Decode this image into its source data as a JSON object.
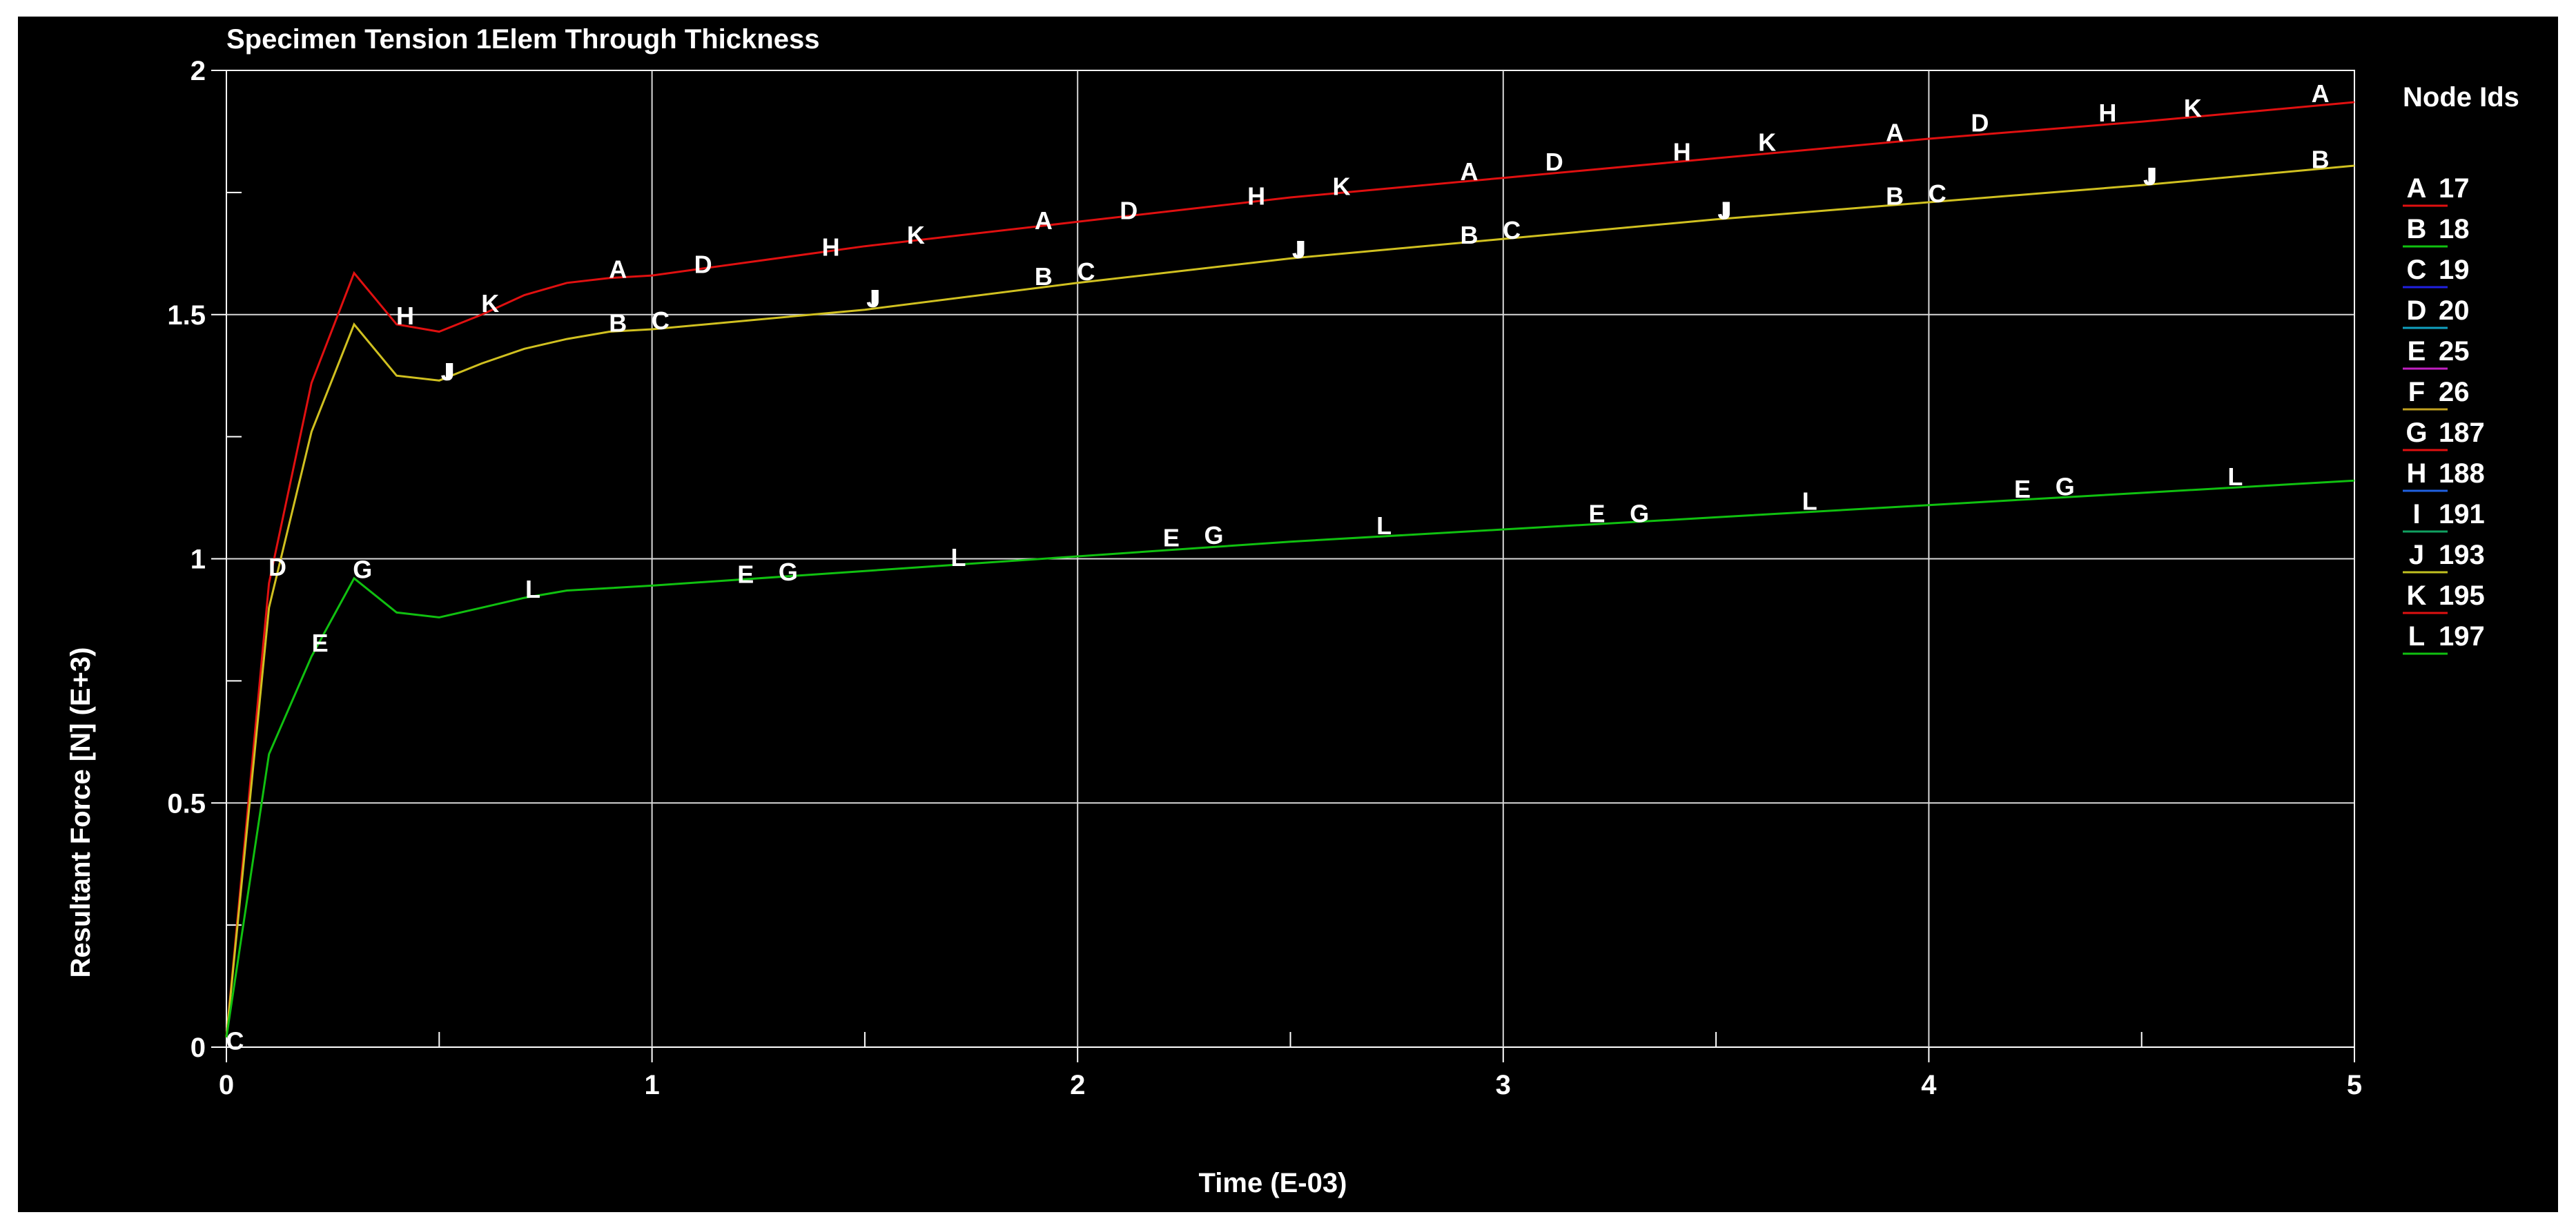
{
  "chart_data": {
    "type": "line",
    "title": "Specimen Tension 1Elem Through Thickness",
    "xlabel": "Time (E-03)",
    "ylabel": "Resultant Force [N] (E+3)",
    "xlim": [
      0,
      5
    ],
    "ylim": [
      0,
      2
    ],
    "xticks": [
      "0",
      "1",
      "2",
      "3",
      "4",
      "5"
    ],
    "yticks": [
      "0",
      "0.5",
      "1",
      "1.5",
      "2"
    ],
    "grid": true,
    "legend_title": "Node Ids",
    "legend_position": "right",
    "legend": [
      {
        "letter": "A",
        "id": "17",
        "color": "#e01010"
      },
      {
        "letter": "B",
        "id": "18",
        "color": "#10c010"
      },
      {
        "letter": "C",
        "id": "19",
        "color": "#2020e0"
      },
      {
        "letter": "D",
        "id": "20",
        "color": "#10a0c0"
      },
      {
        "letter": "E",
        "id": "25",
        "color": "#c020c0"
      },
      {
        "letter": "F",
        "id": "26",
        "color": "#c0a020"
      },
      {
        "letter": "G",
        "id": "187",
        "color": "#e01010"
      },
      {
        "letter": "H",
        "id": "188",
        "color": "#2060e0"
      },
      {
        "letter": "I",
        "id": "191",
        "color": "#10a060"
      },
      {
        "letter": "J",
        "id": "193",
        "color": "#c0c020"
      },
      {
        "letter": "K",
        "id": "195",
        "color": "#e01010"
      },
      {
        "letter": "L",
        "id": "197",
        "color": "#10c010"
      }
    ],
    "series": [
      {
        "color": "#e01010",
        "x": [
          0,
          0.1,
          0.2,
          0.3,
          0.4,
          0.5,
          0.6,
          0.7,
          0.8,
          0.9,
          1.0,
          1.5,
          2.0,
          2.5,
          3.0,
          3.5,
          4.0,
          4.5,
          5.0
        ],
        "y": [
          0.02,
          0.95,
          1.36,
          1.585,
          1.48,
          1.465,
          1.5,
          1.54,
          1.565,
          1.575,
          1.58,
          1.64,
          1.69,
          1.74,
          1.78,
          1.82,
          1.86,
          1.895,
          1.935
        ],
        "labels": [
          {
            "t": "D",
            "x": 0.12,
            "y": 0.985
          },
          {
            "t": "H",
            "x": 0.42,
            "y": 1.5
          },
          {
            "t": "K",
            "x": 0.62,
            "y": 1.525
          },
          {
            "t": "A",
            "x": 0.92,
            "y": 1.595
          },
          {
            "t": "D",
            "x": 1.12,
            "y": 1.605
          },
          {
            "t": "H",
            "x": 1.42,
            "y": 1.64
          },
          {
            "t": "K",
            "x": 1.62,
            "y": 1.665
          },
          {
            "t": "A",
            "x": 1.92,
            "y": 1.695
          },
          {
            "t": "D",
            "x": 2.12,
            "y": 1.715
          },
          {
            "t": "H",
            "x": 2.42,
            "y": 1.745
          },
          {
            "t": "K",
            "x": 2.62,
            "y": 1.765
          },
          {
            "t": "A",
            "x": 2.92,
            "y": 1.795
          },
          {
            "t": "D",
            "x": 3.12,
            "y": 1.815
          },
          {
            "t": "H",
            "x": 3.42,
            "y": 1.835
          },
          {
            "t": "K",
            "x": 3.62,
            "y": 1.855
          },
          {
            "t": "A",
            "x": 3.92,
            "y": 1.875
          },
          {
            "t": "D",
            "x": 4.12,
            "y": 1.895
          },
          {
            "t": "H",
            "x": 4.42,
            "y": 1.915
          },
          {
            "t": "K",
            "x": 4.62,
            "y": 1.925
          },
          {
            "t": "A",
            "x": 4.92,
            "y": 1.955
          }
        ]
      },
      {
        "color": "#d0c020",
        "x": [
          0,
          0.1,
          0.2,
          0.3,
          0.4,
          0.5,
          0.6,
          0.7,
          0.8,
          0.9,
          1.0,
          1.5,
          2.0,
          2.5,
          3.0,
          3.5,
          4.0,
          4.5,
          5.0
        ],
        "y": [
          0.02,
          0.9,
          1.26,
          1.48,
          1.375,
          1.365,
          1.4,
          1.43,
          1.45,
          1.465,
          1.47,
          1.51,
          1.565,
          1.615,
          1.655,
          1.695,
          1.73,
          1.765,
          1.805
        ],
        "labels": [
          {
            "t": "J",
            "x": 0.52,
            "y": 1.385
          },
          {
            "t": "I",
            "x": 0.52,
            "y": 1.385
          },
          {
            "t": "B",
            "x": 0.92,
            "y": 1.485
          },
          {
            "t": "C",
            "x": 1.02,
            "y": 1.49
          },
          {
            "t": "J",
            "x": 1.52,
            "y": 1.535
          },
          {
            "t": "I",
            "x": 1.52,
            "y": 1.535
          },
          {
            "t": "B",
            "x": 1.92,
            "y": 1.58
          },
          {
            "t": "C",
            "x": 2.02,
            "y": 1.59
          },
          {
            "t": "J",
            "x": 2.52,
            "y": 1.635
          },
          {
            "t": "I",
            "x": 2.52,
            "y": 1.635
          },
          {
            "t": "B",
            "x": 2.92,
            "y": 1.665
          },
          {
            "t": "C",
            "x": 3.02,
            "y": 1.675
          },
          {
            "t": "J",
            "x": 3.52,
            "y": 1.715
          },
          {
            "t": "I",
            "x": 3.52,
            "y": 1.715
          },
          {
            "t": "B",
            "x": 3.92,
            "y": 1.745
          },
          {
            "t": "C",
            "x": 4.02,
            "y": 1.75
          },
          {
            "t": "J",
            "x": 4.52,
            "y": 1.785
          },
          {
            "t": "I",
            "x": 4.52,
            "y": 1.785
          },
          {
            "t": "B",
            "x": 4.92,
            "y": 1.82
          }
        ]
      },
      {
        "color": "#10c010",
        "x": [
          0,
          0.1,
          0.2,
          0.3,
          0.4,
          0.5,
          0.6,
          0.7,
          0.8,
          0.9,
          1.0,
          1.5,
          2.0,
          2.5,
          3.0,
          3.5,
          4.0,
          4.5,
          5.0
        ],
        "y": [
          0.02,
          0.6,
          0.8,
          0.96,
          0.89,
          0.88,
          0.9,
          0.92,
          0.935,
          0.94,
          0.945,
          0.975,
          1.005,
          1.035,
          1.06,
          1.085,
          1.11,
          1.135,
          1.16
        ],
        "labels": [
          {
            "t": "C",
            "x": 0.02,
            "y": 0.015
          },
          {
            "t": "E",
            "x": 0.22,
            "y": 0.83
          },
          {
            "t": "G",
            "x": 0.32,
            "y": 0.98
          },
          {
            "t": "L",
            "x": 0.72,
            "y": 0.94
          },
          {
            "t": "E",
            "x": 1.22,
            "y": 0.97
          },
          {
            "t": "G",
            "x": 1.32,
            "y": 0.975
          },
          {
            "t": "L",
            "x": 1.72,
            "y": 1.005
          },
          {
            "t": "E",
            "x": 2.22,
            "y": 1.045
          },
          {
            "t": "G",
            "x": 2.32,
            "y": 1.05
          },
          {
            "t": "L",
            "x": 2.72,
            "y": 1.07
          },
          {
            "t": "E",
            "x": 3.22,
            "y": 1.095
          },
          {
            "t": "G",
            "x": 3.32,
            "y": 1.095
          },
          {
            "t": "L",
            "x": 3.72,
            "y": 1.12
          },
          {
            "t": "E",
            "x": 4.22,
            "y": 1.145
          },
          {
            "t": "G",
            "x": 4.32,
            "y": 1.15
          },
          {
            "t": "L",
            "x": 4.72,
            "y": 1.17
          }
        ]
      }
    ]
  }
}
